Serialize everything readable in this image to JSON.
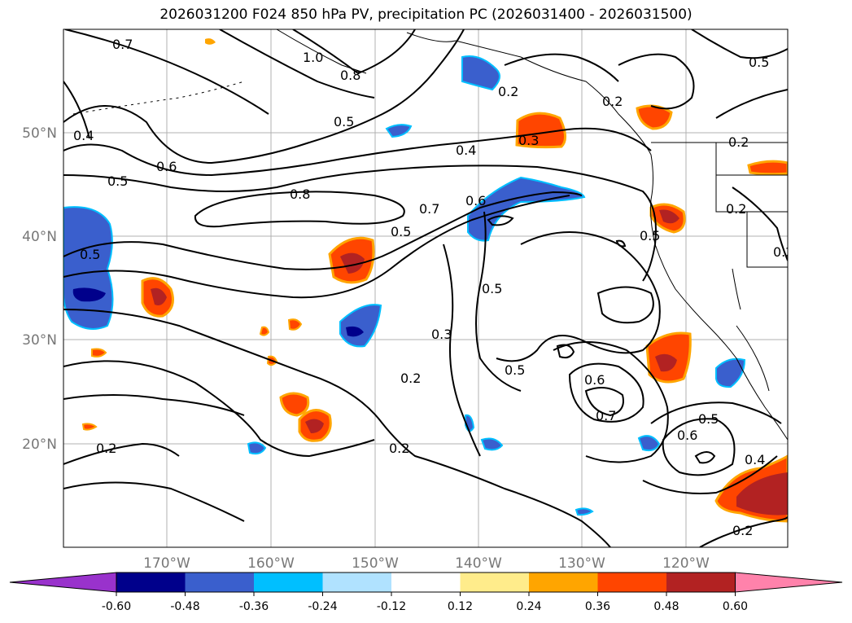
{
  "title": "2026031200 F024 850 hPa PV, precipitation PC (2026031400 - 2026031500)",
  "map": {
    "lon_labels": [
      "170°W",
      "160°W",
      "150°W",
      "140°W",
      "130°W",
      "120°W"
    ],
    "lat_labels": [
      "50°N",
      "40°N",
      "30°N",
      "20°N"
    ]
  },
  "contour_labels": [
    "0.7",
    "0.8",
    "0.4",
    "0.5",
    "0.6",
    "0.8",
    "0.7",
    "0.5",
    "0.6",
    "0.5",
    "0.3",
    "0.2",
    "0.5",
    "0.3",
    "0.5",
    "0.6",
    "0.7",
    "0.5",
    "0.6",
    "0.4",
    "0.2",
    "0.2",
    "0.2",
    "0.5",
    "0.2",
    "0.5",
    "1.0",
    "0.2",
    "0.2",
    "0.2",
    "0.2",
    "0.5",
    "0.4"
  ],
  "colorbar": {
    "colors": [
      "#9932cc",
      "#00008b",
      "#3a5fcd",
      "#00bfff",
      "#b0e2ff",
      "#ffffff",
      "#ffec8b",
      "#ffa500",
      "#ff4500",
      "#b22222",
      "#ff82ab"
    ],
    "ticks": [
      "-0.60",
      "-0.48",
      "-0.36",
      "-0.24",
      "-0.12",
      "0.12",
      "0.24",
      "0.36",
      "0.48",
      "0.60"
    ]
  }
}
